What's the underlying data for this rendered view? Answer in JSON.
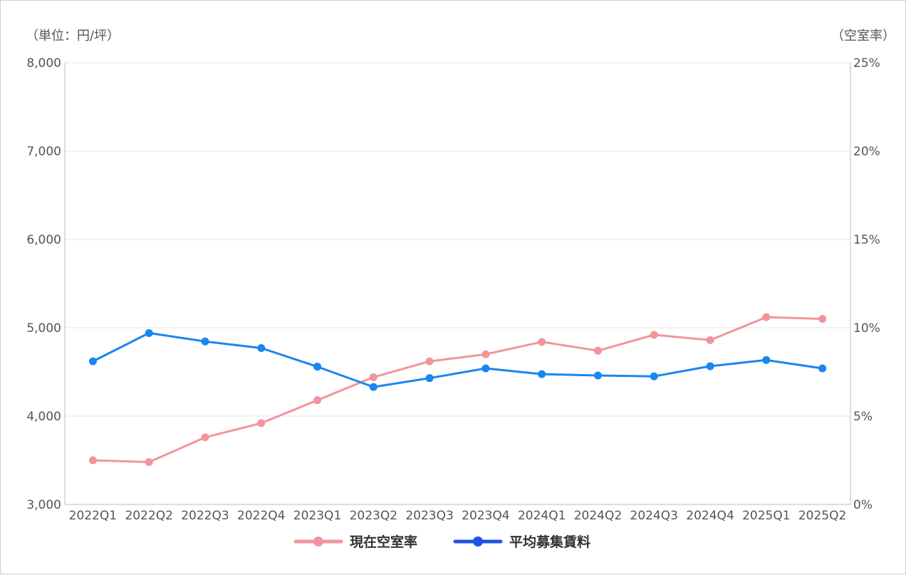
{
  "chart_data": {
    "type": "line",
    "categories": [
      "2022Q1",
      "2022Q2",
      "2022Q3",
      "2022Q4",
      "2023Q1",
      "2023Q2",
      "2023Q3",
      "2023Q4",
      "2024Q1",
      "2024Q2",
      "2024Q3",
      "2024Q4",
      "2025Q1",
      "2025Q2"
    ],
    "left_axis": {
      "unit_label": "（単位：円/坪）",
      "ylim": [
        3000,
        8000
      ],
      "ticks": [
        3000,
        4000,
        5000,
        6000,
        7000,
        8000
      ],
      "tick_labels": [
        "3,000",
        "4,000",
        "5,000",
        "6,000",
        "7,000",
        "8,000"
      ]
    },
    "right_axis": {
      "unit_label": "（空室率）",
      "ylim": [
        0,
        25
      ],
      "ticks": [
        0,
        5,
        10,
        15,
        20,
        25
      ],
      "tick_labels": [
        "0%",
        "5%",
        "10%",
        "15%",
        "20%",
        "25%"
      ]
    },
    "grid": true,
    "legend_position": "bottom",
    "series": [
      {
        "name": "現在空室率",
        "axis": "right",
        "color": "#f2949c",
        "values": [
          2.5,
          2.4,
          3.8,
          4.6,
          5.9,
          7.2,
          8.1,
          8.5,
          9.2,
          8.7,
          9.6,
          9.3,
          10.6,
          10.5
        ]
      },
      {
        "name": "平均募集賃料",
        "axis": "left",
        "color": "#1a86f0",
        "legend_color": "#1d52e6",
        "values": [
          4620,
          4940,
          4845,
          4770,
          4560,
          4330,
          4430,
          4540,
          4475,
          4460,
          4450,
          4565,
          4635,
          4540
        ]
      }
    ]
  }
}
